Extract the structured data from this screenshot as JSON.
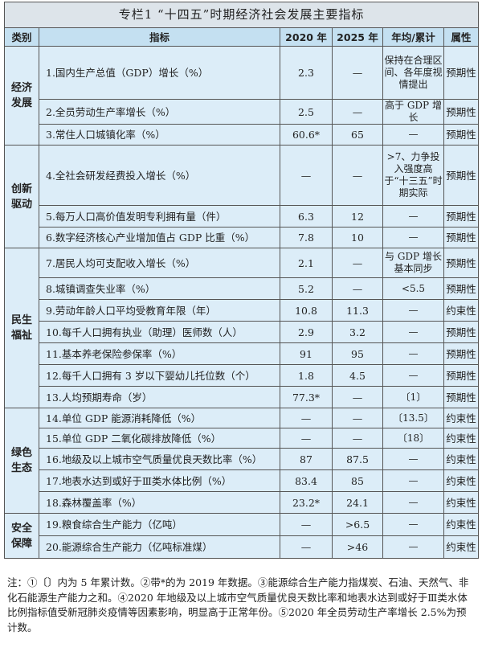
{
  "title": "专栏1 “十四五”时期经济社会发展主要指标",
  "headers": [
    "类别",
    "指标",
    "2020 年",
    "2025 年",
    "年均/累计",
    "属性"
  ],
  "groups": [
    {
      "category": "经济\n发展",
      "rows": [
        {
          "indicator": "1.国内生产总值（GDP）增长（%）",
          "y2020": "2.3",
          "y2025": "—",
          "annual": "保持在合理区间、各年度视情提出",
          "attr": "预期性"
        },
        {
          "indicator": "2.全员劳动生产率增长（%）",
          "y2020": "2.5",
          "y2025": "—",
          "annual": "高于 GDP 增长",
          "attr": "预期性"
        },
        {
          "indicator": "3.常住人口城镇化率（%）",
          "y2020": "60.6*",
          "y2025": "65",
          "annual": "—",
          "attr": "预期性"
        }
      ]
    },
    {
      "category": "创新\n驱动",
      "rows": [
        {
          "indicator": "4.全社会研发经费投入增长（%）",
          "y2020": "—",
          "y2025": "—",
          "annual": ">7、力争投入强度高于“十三五”时期实际",
          "attr": "预期性"
        },
        {
          "indicator": "5.每万人口高价值发明专利拥有量（件）",
          "y2020": "6.3",
          "y2025": "12",
          "annual": "—",
          "attr": "预期性"
        },
        {
          "indicator": "6.数字经济核心产业增加值占 GDP 比重（%）",
          "y2020": "7.8",
          "y2025": "10",
          "annual": "—",
          "attr": "预期性"
        }
      ]
    },
    {
      "category": "民生\n福祉",
      "rows": [
        {
          "indicator": "7.居民人均可支配收入增长（%）",
          "y2020": "2.1",
          "y2025": "—",
          "annual": "与 GDP 增长基本同步",
          "attr": "预期性"
        },
        {
          "indicator": "8.城镇调查失业率（%）",
          "y2020": "5.2",
          "y2025": "—",
          "annual": "<5.5",
          "attr": "预期性"
        },
        {
          "indicator": "9.劳动年龄人口平均受教育年限（年）",
          "y2020": "10.8",
          "y2025": "11.3",
          "annual": "—",
          "attr": "约束性"
        },
        {
          "indicator": "10.每千人口拥有执业（助理）医师数（人）",
          "y2020": "2.9",
          "y2025": "3.2",
          "annual": "—",
          "attr": "预期性"
        },
        {
          "indicator": "11.基本养老保险参保率（%）",
          "y2020": "91",
          "y2025": "95",
          "annual": "—",
          "attr": "预期性"
        },
        {
          "indicator": "12.每千人口拥有 3 岁以下婴幼儿托位数（个）",
          "y2020": "1.8",
          "y2025": "4.5",
          "annual": "—",
          "attr": "预期性"
        },
        {
          "indicator": "13.人均预期寿命（岁）",
          "y2020": "77.3*",
          "y2025": "—",
          "annual": "〔1〕",
          "attr": "预期性"
        }
      ]
    },
    {
      "category": "绿色\n生态",
      "rows": [
        {
          "indicator": "14.单位 GDP 能源消耗降低（%）",
          "y2020": "—",
          "y2025": "—",
          "annual": "〔13.5〕",
          "attr": "约束性"
        },
        {
          "indicator": "15.单位 GDP 二氧化碳排放降低（%）",
          "y2020": "—",
          "y2025": "—",
          "annual": "〔18〕",
          "attr": "约束性"
        },
        {
          "indicator": "16.地级及以上城市空气质量优良天数比率（%）",
          "y2020": "87",
          "y2025": "87.5",
          "annual": "—",
          "attr": "约束性"
        },
        {
          "indicator": "17.地表水达到或好于Ⅲ类水体比例（%）",
          "y2020": "83.4",
          "y2025": "85",
          "annual": "—",
          "attr": "约束性"
        },
        {
          "indicator": "18.森林覆盖率（%）",
          "y2020": "23.2*",
          "y2025": "24.1",
          "annual": "—",
          "attr": "约束性"
        }
      ]
    },
    {
      "category": "安全\n保障",
      "rows": [
        {
          "indicator": "19.粮食综合生产能力（亿吨）",
          "y2020": "—",
          "y2025": ">6.5",
          "annual": "—",
          "attr": "约束性"
        },
        {
          "indicator": "20.能源综合生产能力（亿吨标准煤）",
          "y2020": "—",
          "y2025": ">46",
          "annual": "—",
          "attr": "约束性"
        }
      ]
    }
  ],
  "notes": "注：①〔〕内为 5 年累计数。②带*的为 2019 年数据。③能源综合生产能力指煤炭、石油、天然气、非化石能源生产能力之和。④2020 年地级及以上城市空气质量优良天数比率和地表水达到或好于Ⅲ类水体比例指标值受新冠肺炎疫情等因素影响，明显高于正常年份。⑤2020 年全员劳动生产率增长 2.5%为预计数。"
}
